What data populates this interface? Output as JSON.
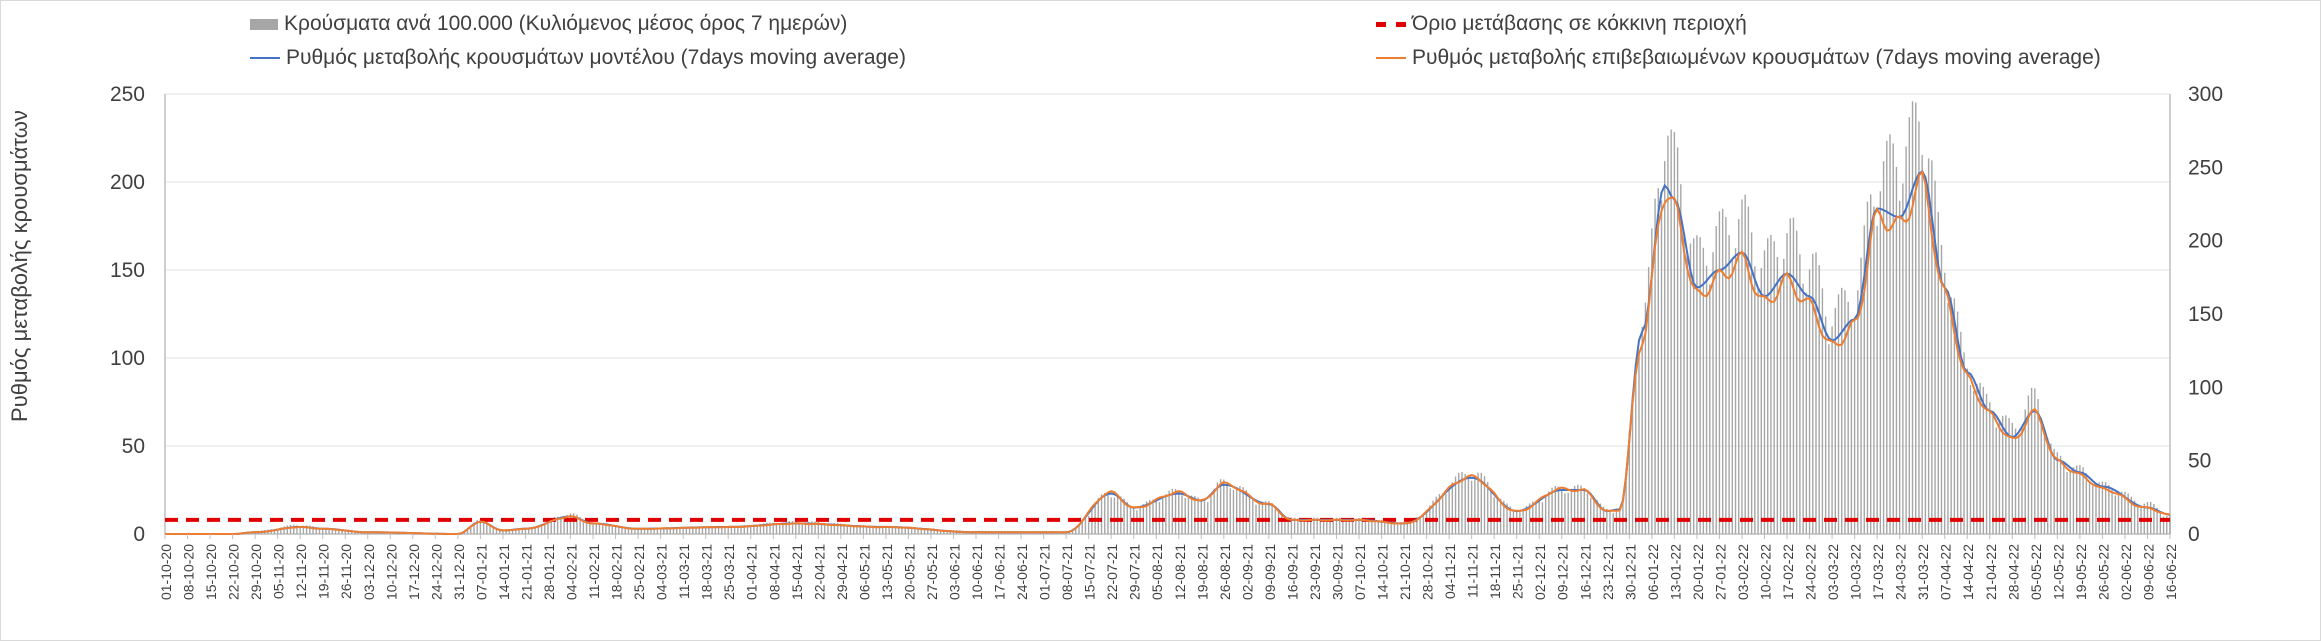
{
  "chart_data": {
    "type": "bar",
    "title": "",
    "xlabel": "",
    "ylabel": "Ρυθμός μεταβολής κρουσμάτων",
    "y2label": "",
    "ylim": [
      0,
      250
    ],
    "y2lim": [
      0,
      300
    ],
    "yticks": [
      0,
      50,
      100,
      150,
      200,
      250
    ],
    "y2ticks": [
      0,
      50,
      100,
      150,
      200,
      250,
      300
    ],
    "grid": true,
    "legend_position": "top",
    "x_start": "01-10-20",
    "x_end": "16-06-22",
    "tick_labels": [
      "01-10-20",
      "08-10-20",
      "15-10-20",
      "22-10-20",
      "29-10-20",
      "05-11-20",
      "12-11-20",
      "19-11-20",
      "26-11-20",
      "03-12-20",
      "10-12-20",
      "17-12-20",
      "24-12-20",
      "31-12-20",
      "07-01-21",
      "14-01-21",
      "21-01-21",
      "28-01-21",
      "04-02-21",
      "11-02-21",
      "18-02-21",
      "25-02-21",
      "04-03-21",
      "11-03-21",
      "18-03-21",
      "25-03-21",
      "01-04-21",
      "08-04-21",
      "15-04-21",
      "22-04-21",
      "29-04-21",
      "06-05-21",
      "13-05-21",
      "20-05-21",
      "27-05-21",
      "03-06-21",
      "10-06-21",
      "17-06-21",
      "24-06-21",
      "01-07-21",
      "08-07-21",
      "15-07-21",
      "22-07-21",
      "29-07-21",
      "05-08-21",
      "12-08-21",
      "19-08-21",
      "26-08-21",
      "02-09-21",
      "09-09-21",
      "16-09-21",
      "23-09-21",
      "30-09-21",
      "07-10-21",
      "14-10-21",
      "21-10-21",
      "28-10-21",
      "04-11-21",
      "11-11-21",
      "18-11-21",
      "25-11-21",
      "02-12-21",
      "09-12-21",
      "16-12-21",
      "23-12-21",
      "30-12-21",
      "06-01-22",
      "13-01-22",
      "20-01-22",
      "27-01-22",
      "03-02-22",
      "10-02-22",
      "17-02-22",
      "24-02-22",
      "03-03-22",
      "10-03-22",
      "17-03-22",
      "24-03-22",
      "31-03-22",
      "07-04-22",
      "14-04-22",
      "21-04-22",
      "28-04-22",
      "05-05-22",
      "12-05-22",
      "19-05-22",
      "26-05-22",
      "02-06-22",
      "09-06-22",
      "16-06-22"
    ],
    "threshold": 8,
    "series": [
      {
        "name": "Κρούσματα ανά 100.000 (Κυλιόμενος μέσος όρος 7 ημερών)",
        "type": "bar",
        "axis": "right",
        "color": "#a6a6a6",
        "keyframes": [
          [
            "01-10-20",
            0
          ],
          [
            "22-10-20",
            0
          ],
          [
            "29-10-20",
            2
          ],
          [
            "12-11-20",
            6
          ],
          [
            "19-11-20",
            4
          ],
          [
            "03-12-20",
            1
          ],
          [
            "31-12-20",
            0
          ],
          [
            "07-01-21",
            9
          ],
          [
            "14-01-21",
            3
          ],
          [
            "21-01-21",
            4
          ],
          [
            "04-02-21",
            13
          ],
          [
            "11-02-21",
            7
          ],
          [
            "25-02-21",
            3
          ],
          [
            "25-03-21",
            5
          ],
          [
            "15-04-21",
            8
          ],
          [
            "13-05-21",
            5
          ],
          [
            "10-06-21",
            2
          ],
          [
            "08-07-21",
            1
          ],
          [
            "22-07-21",
            27
          ],
          [
            "29-07-21",
            18
          ],
          [
            "12-08-21",
            28
          ],
          [
            "19-08-21",
            22
          ],
          [
            "26-08-21",
            34
          ],
          [
            "09-09-21",
            20
          ],
          [
            "16-09-21",
            10
          ],
          [
            "07-10-21",
            10
          ],
          [
            "21-10-21",
            8
          ],
          [
            "11-11-21",
            40
          ],
          [
            "25-11-21",
            16
          ],
          [
            "09-12-21",
            30
          ],
          [
            "16-12-21",
            30
          ],
          [
            "23-12-21",
            16
          ],
          [
            "27-12-21",
            16
          ],
          [
            "03-01-22",
            140
          ],
          [
            "10-01-22",
            262
          ],
          [
            "13-01-22",
            245
          ],
          [
            "20-01-22",
            182
          ],
          [
            "27-01-22",
            198
          ],
          [
            "03-02-22",
            208
          ],
          [
            "10-02-22",
            180
          ],
          [
            "17-02-22",
            196
          ],
          [
            "24-02-22",
            178
          ],
          [
            "03-03-22",
            145
          ],
          [
            "10-03-22",
            158
          ],
          [
            "17-03-22",
            235
          ],
          [
            "24-03-22",
            250
          ],
          [
            "31-03-22",
            272
          ],
          [
            "07-04-22",
            180
          ],
          [
            "14-04-22",
            110
          ],
          [
            "21-04-22",
            85
          ],
          [
            "28-04-22",
            70
          ],
          [
            "05-05-22",
            90
          ],
          [
            "12-05-22",
            50
          ],
          [
            "19-05-22",
            42
          ],
          [
            "26-05-22",
            32
          ],
          [
            "09-06-22",
            20
          ],
          [
            "16-06-22",
            12
          ]
        ]
      },
      {
        "name": "Ρυθμός μεταβολής κρουσμάτων μοντέλου (7days moving average)",
        "type": "line",
        "axis": "left",
        "color": "#4472c4",
        "keyframes": [
          [
            "01-10-20",
            0
          ],
          [
            "22-10-20",
            0
          ],
          [
            "29-10-20",
            1
          ],
          [
            "12-11-20",
            4
          ],
          [
            "19-11-20",
            3
          ],
          [
            "03-12-20",
            1
          ],
          [
            "31-12-20",
            0
          ],
          [
            "07-01-21",
            7
          ],
          [
            "14-01-21",
            2
          ],
          [
            "21-01-21",
            3
          ],
          [
            "04-02-21",
            10
          ],
          [
            "11-02-21",
            6
          ],
          [
            "25-02-21",
            3
          ],
          [
            "25-03-21",
            4
          ],
          [
            "15-04-21",
            6
          ],
          [
            "13-05-21",
            4
          ],
          [
            "10-06-21",
            1
          ],
          [
            "08-07-21",
            1
          ],
          [
            "22-07-21",
            23
          ],
          [
            "29-07-21",
            15
          ],
          [
            "12-08-21",
            23
          ],
          [
            "19-08-21",
            19
          ],
          [
            "26-08-21",
            28
          ],
          [
            "09-09-21",
            17
          ],
          [
            "16-09-21",
            8
          ],
          [
            "07-10-21",
            8
          ],
          [
            "21-10-21",
            6
          ],
          [
            "11-11-21",
            32
          ],
          [
            "25-11-21",
            13
          ],
          [
            "09-12-21",
            25
          ],
          [
            "16-12-21",
            25
          ],
          [
            "23-12-21",
            13
          ],
          [
            "27-12-21",
            14
          ],
          [
            "03-01-22",
            115
          ],
          [
            "10-01-22",
            198
          ],
          [
            "13-01-22",
            190
          ],
          [
            "20-01-22",
            140
          ],
          [
            "27-01-22",
            150
          ],
          [
            "03-02-22",
            160
          ],
          [
            "10-02-22",
            135
          ],
          [
            "17-02-22",
            148
          ],
          [
            "24-02-22",
            135
          ],
          [
            "03-03-22",
            110
          ],
          [
            "10-03-22",
            122
          ],
          [
            "17-03-22",
            185
          ],
          [
            "24-03-22",
            180
          ],
          [
            "31-03-22",
            206
          ],
          [
            "07-04-22",
            140
          ],
          [
            "14-04-22",
            92
          ],
          [
            "21-04-22",
            70
          ],
          [
            "28-04-22",
            55
          ],
          [
            "05-05-22",
            70
          ],
          [
            "12-05-22",
            42
          ],
          [
            "19-05-22",
            35
          ],
          [
            "26-05-22",
            27
          ],
          [
            "09-06-22",
            15
          ],
          [
            "16-06-22",
            11
          ]
        ]
      },
      {
        "name": "Ρυθμός μεταβολής επιβεβαιωμένων κρουσμάτων (7days moving average)",
        "type": "line",
        "axis": "left",
        "color": "#ed7d31",
        "keyframes": [
          [
            "01-10-20",
            0
          ],
          [
            "22-10-20",
            0
          ],
          [
            "29-10-20",
            1
          ],
          [
            "12-11-20",
            4
          ],
          [
            "19-11-20",
            3
          ],
          [
            "03-12-20",
            1
          ],
          [
            "31-12-20",
            0
          ],
          [
            "07-01-21",
            7
          ],
          [
            "14-01-21",
            2
          ],
          [
            "21-01-21",
            3
          ],
          [
            "04-02-21",
            10
          ],
          [
            "11-02-21",
            6
          ],
          [
            "25-02-21",
            3
          ],
          [
            "25-03-21",
            4
          ],
          [
            "15-04-21",
            6
          ],
          [
            "13-05-21",
            4
          ],
          [
            "10-06-21",
            1
          ],
          [
            "08-07-21",
            1
          ],
          [
            "22-07-21",
            24
          ],
          [
            "29-07-21",
            15
          ],
          [
            "12-08-21",
            24
          ],
          [
            "19-08-21",
            19
          ],
          [
            "26-08-21",
            29
          ],
          [
            "09-09-21",
            17
          ],
          [
            "16-09-21",
            8
          ],
          [
            "07-10-21",
            8
          ],
          [
            "21-10-21",
            6
          ],
          [
            "11-11-21",
            33
          ],
          [
            "25-11-21",
            13
          ],
          [
            "09-12-21",
            26
          ],
          [
            "16-12-21",
            25
          ],
          [
            "23-12-21",
            13
          ],
          [
            "27-12-21",
            14
          ],
          [
            "03-01-22",
            112
          ],
          [
            "10-01-22",
            196
          ],
          [
            "13-01-22",
            188
          ],
          [
            "20-01-22",
            137
          ],
          [
            "27-01-22",
            148
          ],
          [
            "03-02-22",
            158
          ],
          [
            "10-02-22",
            133
          ],
          [
            "17-02-22",
            146
          ],
          [
            "24-02-22",
            132
          ],
          [
            "03-03-22",
            108
          ],
          [
            "10-03-22",
            120
          ],
          [
            "17-03-22",
            182
          ],
          [
            "24-03-22",
            178
          ],
          [
            "31-03-22",
            203
          ],
          [
            "07-04-22",
            138
          ],
          [
            "14-04-22",
            90
          ],
          [
            "21-04-22",
            69
          ],
          [
            "28-04-22",
            54
          ],
          [
            "05-05-22",
            70
          ],
          [
            "12-05-22",
            42
          ],
          [
            "19-05-22",
            34
          ],
          [
            "26-05-22",
            26
          ],
          [
            "09-06-22",
            15
          ],
          [
            "16-06-22",
            11
          ]
        ]
      },
      {
        "name": "Όριο μετάβασης σε κόκκινη περιοχή",
        "type": "dashed-line",
        "axis": "left",
        "color": "#e00000",
        "value": 8
      }
    ]
  }
}
